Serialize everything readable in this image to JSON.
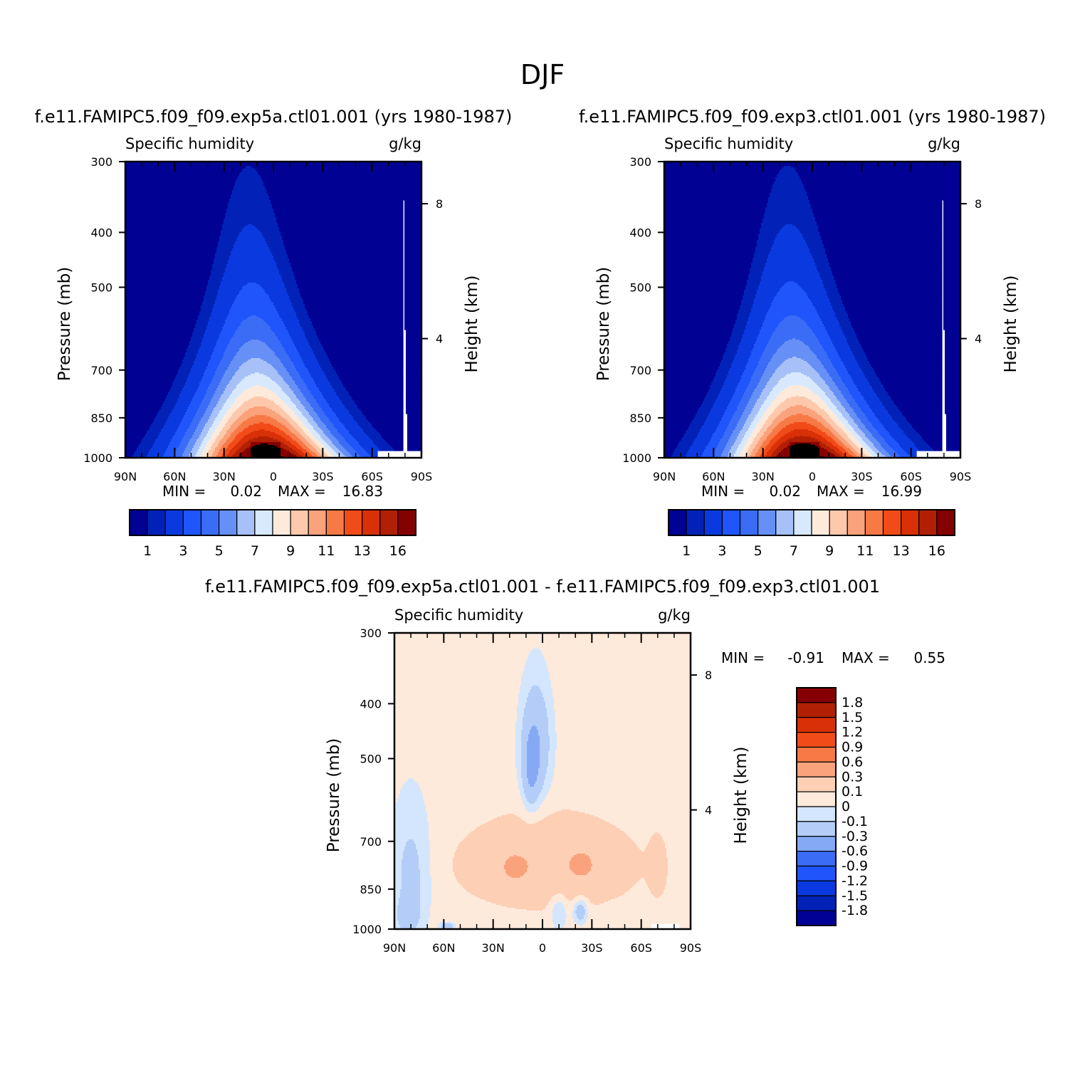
{
  "figure_title": "DJF",
  "colors": {
    "seq_palette": [
      "#010194",
      "#0222b7",
      "#0a3adf",
      "#1f55fb",
      "#3a6cf6",
      "#6690f5",
      "#a7c1f8",
      "#d8e9fd",
      "#feeadb",
      "#fdc8ab",
      "#f9a27c",
      "#f77a46",
      "#f24b1a",
      "#d93008",
      "#b12004",
      "#850000"
    ],
    "diff_palette": [
      "#010194",
      "#0222b7",
      "#0a3adf",
      "#1f55fb",
      "#3a6cf6",
      "#86a9f6",
      "#b3cdf8",
      "#d3e6fd",
      "#feeadb",
      "#fdcfb4",
      "#f9a27c",
      "#f77a46",
      "#f24b1a",
      "#d93008",
      "#b12004",
      "#850000"
    ]
  },
  "chart_data": [
    {
      "id": "panel1",
      "type": "heatmap",
      "case_title": "f.e11.FAMIPC5.f09_f09.exp5a.ctl01.001 (yrs 1980-1987)",
      "left_label": "Specific humidity",
      "right_label": "g/kg",
      "ylabel": "Pressure (mb)",
      "ylabel_right": "Height (km)",
      "x_ticks": [
        "90N",
        "60N",
        "30N",
        "0",
        "30S",
        "60S",
        "90S"
      ],
      "y_ticks": [
        "300",
        "400",
        "500",
        "700",
        "850",
        "1000"
      ],
      "height_ticks": [
        "8",
        "4"
      ],
      "min_label": "MIN =",
      "min_value": "0.02",
      "max_label": "MAX =",
      "max_value": "16.83",
      "colorbar_labels": [
        "1",
        "3",
        "5",
        "7",
        "9",
        "11",
        "13",
        "16"
      ],
      "peak_lat": 0,
      "peak_value": 16.83
    },
    {
      "id": "panel2",
      "type": "heatmap",
      "case_title": "f.e11.FAMIPC5.f09_f09.exp3.ctl01.001 (yrs 1980-1987)",
      "left_label": "Specific humidity",
      "right_label": "g/kg",
      "ylabel": "Pressure (mb)",
      "ylabel_right": "Height (km)",
      "x_ticks": [
        "90N",
        "60N",
        "30N",
        "0",
        "30S",
        "60S",
        "90S"
      ],
      "y_ticks": [
        "300",
        "400",
        "500",
        "700",
        "850",
        "1000"
      ],
      "height_ticks": [
        "8",
        "4"
      ],
      "min_label": "MIN =",
      "min_value": "0.02",
      "max_label": "MAX =",
      "max_value": "16.99",
      "colorbar_labels": [
        "1",
        "3",
        "5",
        "7",
        "9",
        "11",
        "13",
        "16"
      ],
      "peak_lat": 0,
      "peak_value": 16.99
    },
    {
      "id": "panel3",
      "type": "heatmap",
      "case_title": "f.e11.FAMIPC5.f09_f09.exp5a.ctl01.001 - f.e11.FAMIPC5.f09_f09.exp3.ctl01.001",
      "left_label": "Specific humidity",
      "right_label": "g/kg",
      "ylabel": "Pressure (mb)",
      "ylabel_right": "Height (km)",
      "x_ticks": [
        "90N",
        "60N",
        "30N",
        "0",
        "30S",
        "60S",
        "90S"
      ],
      "y_ticks": [
        "300",
        "400",
        "500",
        "700",
        "850",
        "1000"
      ],
      "height_ticks": [
        "8",
        "4"
      ],
      "min_label": "MIN =",
      "min_value": "-0.91",
      "max_label": "MAX =",
      "max_value": "0.55",
      "colorbar_labels": [
        "1.8",
        "1.5",
        "1.2",
        "0.9",
        "0.6",
        "0.3",
        "0.1",
        "0",
        "-0.1",
        "-0.3",
        "-0.6",
        "-0.9",
        "-1.2",
        "-1.5",
        "-1.8"
      ]
    }
  ]
}
